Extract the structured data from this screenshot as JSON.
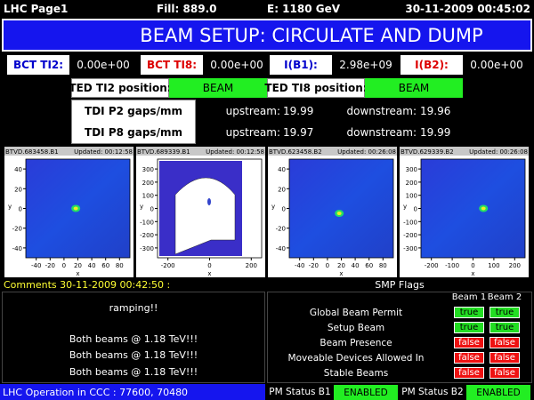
{
  "header": {
    "page": "LHC Page1",
    "fill": "Fill: 889.0",
    "energy": "E:  1180 GeV",
    "datetime": "30-11-2009 00:45:02"
  },
  "title": "BEAM SETUP: CIRCULATE AND DUMP",
  "intensities": [
    {
      "label": "BCT TI2:",
      "value": "0.00e+00",
      "color": "#0000cc"
    },
    {
      "label": "BCT TI8:",
      "value": "0.00e+00",
      "color": "#dd0000"
    },
    {
      "label": "I(B1):",
      "value": "2.98e+09",
      "color": "#0000cc"
    },
    {
      "label": "I(B2):",
      "value": "0.00e+00",
      "color": "#dd0000"
    }
  ],
  "ted": [
    {
      "label": "TED TI2 position:",
      "status": "BEAM"
    },
    {
      "label": "TED TI8 position:",
      "status": "BEAM"
    }
  ],
  "tdi": [
    {
      "label": "TDI P2 gaps/mm",
      "upstream_label": "upstream:",
      "upstream": 19.99,
      "downstream_label": "downstream:",
      "downstream": 19.96
    },
    {
      "label": "TDI P8 gaps/mm",
      "upstream_label": "upstream:",
      "upstream": 19.97,
      "downstream_label": "downstream:",
      "downstream": 19.99
    }
  ],
  "panels": [
    {
      "name": "BTVD.683458.B1",
      "updated": "Updated: 00:12:58",
      "y_label": "y",
      "x_label": "x",
      "yticks": [
        40,
        20,
        0,
        -20,
        -40
      ],
      "xticks": [
        -40,
        -20,
        0,
        20,
        40,
        60,
        80
      ]
    },
    {
      "name": "BTVD.689339.B1",
      "updated": "Updated: 00:12:58",
      "y_label": "y",
      "x_label": "x",
      "yticks": [
        300,
        200,
        100,
        0,
        -100,
        -200,
        -300
      ],
      "xticks": [
        -200,
        0,
        200
      ]
    },
    {
      "name": "BTVD.623458.B2",
      "updated": "Updated: 00:26:08",
      "y_label": "y",
      "x_label": "x",
      "yticks": [
        40,
        20,
        0,
        -20,
        -40
      ],
      "xticks": [
        -40,
        -20,
        0,
        20,
        40,
        60,
        80
      ]
    },
    {
      "name": "BTVD.629339.B2",
      "updated": "Updated: 00:26:08",
      "y_label": "y",
      "x_label": "x",
      "yticks": [
        300,
        200,
        100,
        0,
        -100,
        -200,
        -300
      ],
      "xticks": [
        -200,
        -100,
        0,
        100,
        200
      ]
    }
  ],
  "comments": {
    "title": "Comments 30-11-2009 00:42:50 :",
    "lines": [
      "ramping!!",
      "Both beams @ 1.18 TeV!!!",
      "Both beams @ 1.18 TeV!!!",
      "Both beams @ 1.18 TeV!!!"
    ]
  },
  "smp": {
    "title": "SMP Flags",
    "columns": [
      "Beam 1",
      "Beam 2"
    ],
    "rows": [
      {
        "label": "Global Beam Permit",
        "b1": "true",
        "b2": "true"
      },
      {
        "label": "Setup Beam",
        "b1": "true",
        "b2": "true"
      },
      {
        "label": "Beam Presence",
        "b1": "false",
        "b2": "false"
      },
      {
        "label": "Moveable Devices Allowed In",
        "b1": "false",
        "b2": "false"
      },
      {
        "label": "Stable Beams",
        "b1": "false",
        "b2": "false"
      }
    ]
  },
  "footer": {
    "operation": "LHC Operation in CCC : 77600, 70480",
    "pm": [
      {
        "label": "PM Status B1",
        "status": "ENABLED"
      },
      {
        "label": "PM Status B2",
        "status": "ENABLED"
      }
    ]
  }
}
